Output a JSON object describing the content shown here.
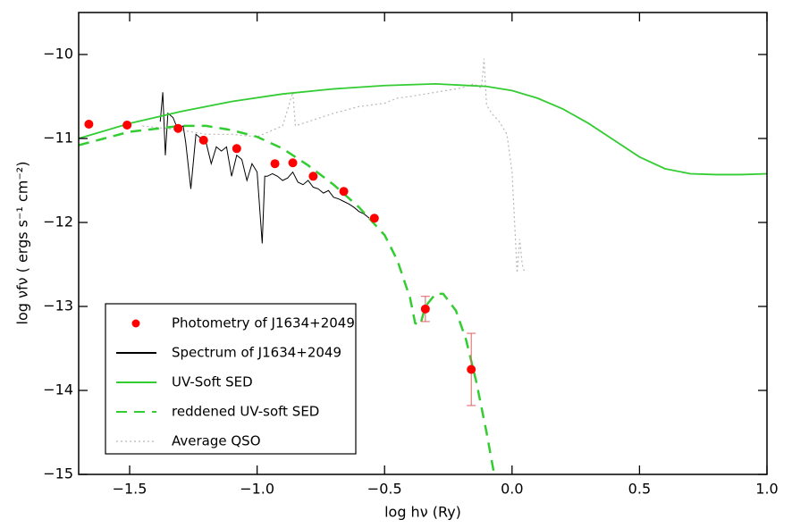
{
  "chart_data": {
    "type": "line",
    "xlabel": "log hν (Ry)",
    "ylabel": "log νfν ( ergs s⁻¹ cm⁻²)",
    "xlim": [
      -1.7,
      1.0
    ],
    "ylim": [
      -15,
      -9.5
    ],
    "xticks": [
      {
        "value": -1.5,
        "label": "−1.5"
      },
      {
        "value": -1.0,
        "label": "−1.0"
      },
      {
        "value": -0.5,
        "label": "−0.5"
      },
      {
        "value": 0.0,
        "label": "0.0"
      },
      {
        "value": 0.5,
        "label": "0.5"
      },
      {
        "value": 1.0,
        "label": "1.0"
      }
    ],
    "yticks": [
      {
        "value": -10,
        "label": "−10"
      },
      {
        "value": -11,
        "label": "−11"
      },
      {
        "value": -12,
        "label": "−12"
      },
      {
        "value": -13,
        "label": "−13"
      },
      {
        "value": -14,
        "label": "−14"
      },
      {
        "value": -15,
        "label": "−15"
      }
    ],
    "legend": "lower-left",
    "series": [
      {
        "name": "Photometry of J1634+2049",
        "kind": "marker",
        "color": "#ff0000",
        "x": [
          -1.66,
          -1.51,
          -1.31,
          -1.21,
          -1.08,
          -0.93,
          -0.86,
          -0.78,
          -0.66,
          -0.54,
          -0.34,
          -0.16
        ],
        "values": [
          -10.83,
          -10.84,
          -10.88,
          -11.02,
          -11.12,
          -11.3,
          -11.29,
          -11.45,
          -11.63,
          -11.95,
          -13.03,
          -13.75
        ],
        "errors": [
          null,
          null,
          null,
          null,
          null,
          null,
          null,
          null,
          null,
          null,
          0.15,
          0.43
        ]
      },
      {
        "name": "Spectrum of J1634+2049",
        "kind": "solid",
        "color": "#000000",
        "x": [
          -1.38,
          -1.37,
          -1.36,
          -1.35,
          -1.33,
          -1.31,
          -1.29,
          -1.28,
          -1.26,
          -1.24,
          -1.22,
          -1.2,
          -1.18,
          -1.16,
          -1.14,
          -1.12,
          -1.1,
          -1.08,
          -1.06,
          -1.04,
          -1.02,
          -1.0,
          -0.98,
          -0.97,
          -0.96,
          -0.94,
          -0.92,
          -0.9,
          -0.88,
          -0.86,
          -0.84,
          -0.82,
          -0.8,
          -0.78,
          -0.76,
          -0.74,
          -0.72,
          -0.7,
          -0.68,
          -0.66,
          -0.64,
          -0.62,
          -0.6,
          -0.58,
          -0.56
        ],
        "values": [
          -10.8,
          -10.45,
          -11.2,
          -10.7,
          -10.75,
          -10.9,
          -10.85,
          -11.05,
          -11.6,
          -10.95,
          -11.0,
          -11.05,
          -11.3,
          -11.1,
          -11.15,
          -11.1,
          -11.45,
          -11.2,
          -11.25,
          -11.5,
          -11.3,
          -11.4,
          -12.25,
          -11.45,
          -11.45,
          -11.42,
          -11.45,
          -11.5,
          -11.47,
          -11.4,
          -11.52,
          -11.55,
          -11.5,
          -11.58,
          -11.6,
          -11.65,
          -11.62,
          -11.7,
          -11.72,
          -11.75,
          -11.78,
          -11.82,
          -11.87,
          -11.9,
          -11.95
        ]
      },
      {
        "name": "UV-Soft SED",
        "kind": "solid",
        "color": "#33cc33",
        "x": [
          -1.7,
          -1.5,
          -1.3,
          -1.1,
          -0.9,
          -0.7,
          -0.5,
          -0.3,
          -0.1,
          0.0,
          0.1,
          0.2,
          0.3,
          0.4,
          0.5,
          0.6,
          0.7,
          0.8,
          0.9,
          1.0
        ],
        "values": [
          -11.0,
          -10.82,
          -10.68,
          -10.56,
          -10.47,
          -10.41,
          -10.37,
          -10.35,
          -10.38,
          -10.43,
          -10.52,
          -10.65,
          -10.82,
          -11.02,
          -11.22,
          -11.36,
          -11.42,
          -11.43,
          -11.43,
          -11.42
        ]
      },
      {
        "name": "reddened UV-soft SED",
        "kind": "dashed",
        "color": "#33cc33",
        "x": [
          -1.7,
          -1.5,
          -1.3,
          -1.2,
          -1.1,
          -1.0,
          -0.9,
          -0.8,
          -0.7,
          -0.6,
          -0.5,
          -0.45,
          -0.4,
          -0.38,
          -0.36,
          -0.34,
          -0.3,
          -0.27,
          -0.22,
          -0.18,
          -0.14,
          -0.1,
          -0.07
        ],
        "values": [
          -11.08,
          -10.92,
          -10.85,
          -10.85,
          -10.9,
          -10.98,
          -11.12,
          -11.32,
          -11.55,
          -11.82,
          -12.15,
          -12.45,
          -12.9,
          -13.2,
          -13.22,
          -13.0,
          -12.85,
          -12.85,
          -13.05,
          -13.4,
          -13.9,
          -14.5,
          -15.0
        ]
      },
      {
        "name": "Average QSO",
        "kind": "dotted",
        "color": "#b8b8b8",
        "x": [
          -1.45,
          -1.3,
          -1.2,
          -1.1,
          -1.0,
          -0.9,
          -0.86,
          -0.85,
          -0.8,
          -0.7,
          -0.6,
          -0.5,
          -0.45,
          -0.4,
          -0.3,
          -0.2,
          -0.15,
          -0.12,
          -0.11,
          -0.1,
          -0.08,
          -0.05,
          -0.02,
          0.0,
          0.01,
          0.02,
          0.03,
          0.04,
          0.05
        ],
        "values": [
          -10.85,
          -10.9,
          -10.95,
          -10.95,
          -10.98,
          -10.85,
          -10.45,
          -10.85,
          -10.8,
          -10.7,
          -10.62,
          -10.58,
          -10.52,
          -10.5,
          -10.45,
          -10.4,
          -10.35,
          -10.4,
          -10.05,
          -10.6,
          -10.7,
          -10.8,
          -10.95,
          -11.4,
          -12.0,
          -12.6,
          -12.2,
          -12.5,
          -12.6
        ]
      }
    ]
  }
}
